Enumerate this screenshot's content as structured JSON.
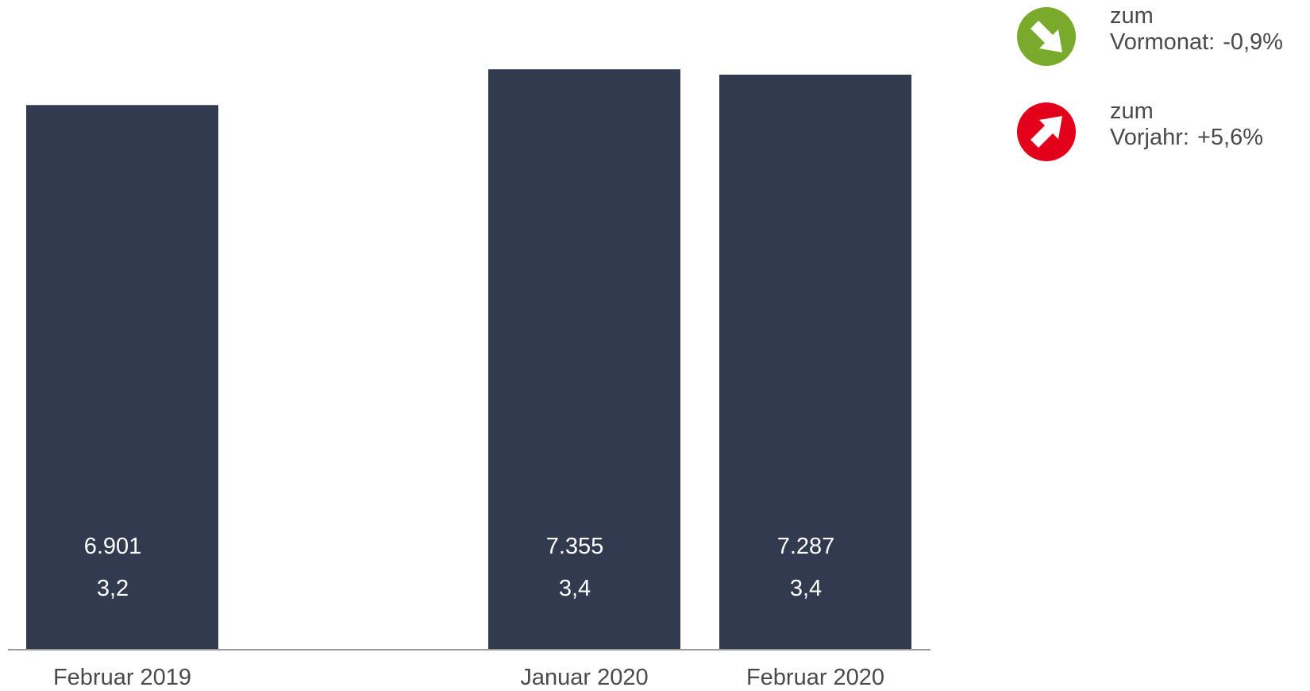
{
  "chart_data": {
    "type": "bar",
    "categories": [
      "Februar 2019",
      "",
      "Januar 2020",
      "Februar 2020"
    ],
    "values": [
      6901,
      null,
      7355,
      7287
    ],
    "value_labels": [
      "6.901",
      "",
      "7.355",
      "7.287"
    ],
    "secondary_labels": [
      "3,2",
      "",
      "3,4",
      "3,4"
    ],
    "ylim": [
      0,
      7680
    ],
    "grid": false,
    "bar_color": "#323a4f",
    "label_color": "#ffffff",
    "axis_color": "#9a9a9a"
  },
  "legend": {
    "month": {
      "line1": "zum",
      "line2_label": "Vormonat:",
      "line2_value": "-0,9%",
      "icon": "arrow-down-right-icon",
      "color": "#7aaa2c"
    },
    "year": {
      "line1": "zum",
      "line2_label": "Vorjahr:",
      "line2_value": "+5,6%",
      "icon": "arrow-up-right-icon",
      "color": "#e2001a"
    }
  }
}
